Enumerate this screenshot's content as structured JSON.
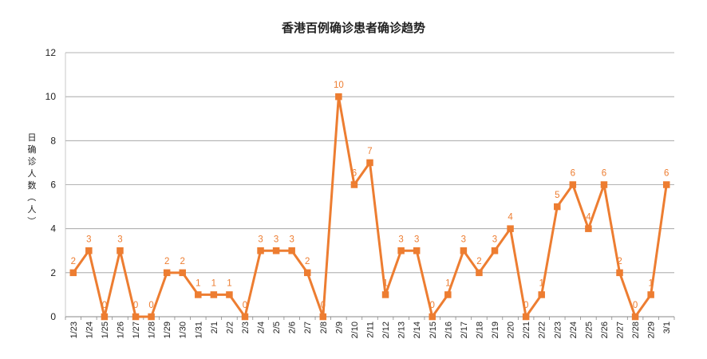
{
  "chart_data": {
    "type": "line",
    "title": "香港百例确诊患者确诊趋势",
    "xlabel": "",
    "ylabel": "日确诊人数（人）",
    "ylim": [
      0,
      12
    ],
    "yticks": [
      0,
      2,
      4,
      6,
      8,
      10,
      12
    ],
    "grid": true,
    "legend": "none",
    "categories": [
      "1/23",
      "1/24",
      "1/25",
      "1/26",
      "1/27",
      "1/28",
      "1/29",
      "1/30",
      "1/31",
      "2/1",
      "2/2",
      "2/3",
      "2/4",
      "2/5",
      "2/6",
      "2/7",
      "2/8",
      "2/9",
      "2/10",
      "2/11",
      "2/12",
      "2/13",
      "2/14",
      "2/15",
      "2/16",
      "2/17",
      "2/18",
      "2/19",
      "2/20",
      "2/21",
      "2/22",
      "2/23",
      "2/24",
      "2/25",
      "2/26",
      "2/27",
      "2/28",
      "2/29",
      "3/1"
    ],
    "series": [
      {
        "values": [
          2,
          3,
          0,
          3,
          0,
          0,
          2,
          2,
          1,
          1,
          1,
          0,
          3,
          3,
          3,
          2,
          0,
          10,
          6,
          7,
          1,
          3,
          3,
          0,
          1,
          3,
          2,
          3,
          4,
          0,
          1,
          5,
          6,
          4,
          6,
          2,
          0,
          1,
          6
        ],
        "color": "#ED7D31"
      }
    ]
  }
}
